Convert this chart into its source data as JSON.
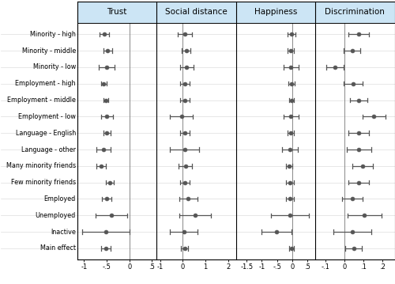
{
  "row_labels": [
    "Minority - high",
    "Minority - middle",
    "Minority - low",
    "Employment - high",
    "Employment - middle",
    "Employment - low",
    "Language - English",
    "Language - other",
    "Many minority friends",
    "Few minority friends",
    "Employed",
    "Unemployed",
    "Inactive",
    "Main effect"
  ],
  "panels": [
    {
      "title": "Trust",
      "xlim": [
        -1.15,
        0.6
      ],
      "xticks": [
        -1,
        -0.5,
        0,
        0.5
      ],
      "xticklabels": [
        "-1",
        "-.5",
        "0",
        ".5"
      ],
      "zero_line": 0.0,
      "data": [
        {
          "est": -0.55,
          "lo": -0.65,
          "hi": -0.45
        },
        {
          "est": -0.48,
          "lo": -0.58,
          "hi": -0.38
        },
        {
          "est": -0.5,
          "lo": -0.68,
          "hi": -0.32
        },
        {
          "est": -0.57,
          "lo": -0.63,
          "hi": -0.51
        },
        {
          "est": -0.52,
          "lo": -0.58,
          "hi": -0.46
        },
        {
          "est": -0.5,
          "lo": -0.63,
          "hi": -0.37
        },
        {
          "est": -0.5,
          "lo": -0.58,
          "hi": -0.42
        },
        {
          "est": -0.57,
          "lo": -0.72,
          "hi": -0.42
        },
        {
          "est": -0.62,
          "lo": -0.72,
          "hi": -0.52
        },
        {
          "est": -0.43,
          "lo": -0.52,
          "hi": -0.34
        },
        {
          "est": -0.5,
          "lo": -0.6,
          "hi": -0.4
        },
        {
          "est": -0.4,
          "lo": -0.75,
          "hi": -0.05
        },
        {
          "est": -0.52,
          "lo": -1.05,
          "hi": 0.01
        },
        {
          "est": -0.52,
          "lo": -0.62,
          "hi": -0.42
        }
      ]
    },
    {
      "title": "Social distance",
      "xlim": [
        -1.15,
        2.35
      ],
      "xticks": [
        -1,
        0,
        1,
        2
      ],
      "xticklabels": [
        "-1",
        "0",
        "1",
        "2"
      ],
      "zero_line": 0.0,
      "data": [
        {
          "est": 0.1,
          "lo": -0.2,
          "hi": 0.4
        },
        {
          "est": 0.15,
          "lo": -0.05,
          "hi": 0.35
        },
        {
          "est": 0.18,
          "lo": -0.12,
          "hi": 0.48
        },
        {
          "est": 0.1,
          "lo": -0.12,
          "hi": 0.32
        },
        {
          "est": 0.1,
          "lo": -0.1,
          "hi": 0.3
        },
        {
          "est": -0.05,
          "lo": -0.55,
          "hi": 0.45
        },
        {
          "est": 0.1,
          "lo": -0.12,
          "hi": 0.32
        },
        {
          "est": 0.08,
          "lo": -0.55,
          "hi": 0.71
        },
        {
          "est": 0.12,
          "lo": -0.18,
          "hi": 0.42
        },
        {
          "est": 0.1,
          "lo": -0.12,
          "hi": 0.32
        },
        {
          "est": 0.25,
          "lo": -0.15,
          "hi": 0.65
        },
        {
          "est": 0.55,
          "lo": -0.15,
          "hi": 1.25
        },
        {
          "est": 0.05,
          "lo": -0.55,
          "hi": 0.65
        },
        {
          "est": 0.08,
          "lo": -0.08,
          "hi": 0.24
        }
      ]
    },
    {
      "title": "Happiness",
      "xlim": [
        -1.85,
        0.75
      ],
      "xticks": [
        -1.5,
        -1,
        -0.5,
        0,
        0.5
      ],
      "xticklabels": [
        "-1.5",
        "-1",
        "-.5",
        "0",
        ".5"
      ],
      "zero_line": 0.0,
      "data": [
        {
          "est": -0.02,
          "lo": -0.15,
          "hi": 0.11
        },
        {
          "est": -0.05,
          "lo": -0.15,
          "hi": 0.05
        },
        {
          "est": -0.05,
          "lo": -0.3,
          "hi": 0.2
        },
        {
          "est": -0.02,
          "lo": -0.12,
          "hi": 0.08
        },
        {
          "est": -0.02,
          "lo": -0.1,
          "hi": 0.06
        },
        {
          "est": -0.05,
          "lo": -0.3,
          "hi": 0.2
        },
        {
          "est": -0.05,
          "lo": -0.15,
          "hi": 0.05
        },
        {
          "est": -0.08,
          "lo": -0.33,
          "hi": 0.17
        },
        {
          "est": -0.1,
          "lo": -0.2,
          "hi": 0.0
        },
        {
          "est": -0.08,
          "lo": -0.2,
          "hi": 0.04
        },
        {
          "est": -0.08,
          "lo": -0.22,
          "hi": 0.06
        },
        {
          "est": -0.08,
          "lo": -0.7,
          "hi": 0.54
        },
        {
          "est": -0.52,
          "lo": -1.0,
          "hi": -0.04
        },
        {
          "est": -0.03,
          "lo": -0.1,
          "hi": 0.04
        }
      ]
    },
    {
      "title": "Discrimination",
      "xlim": [
        -0.155,
        0.265
      ],
      "xticks": [
        -0.1,
        0,
        0.1,
        0.2
      ],
      "xticklabels": [
        "-.1",
        "0",
        ".1",
        ".2"
      ],
      "zero_line": 0.0,
      "data": [
        {
          "est": 0.075,
          "lo": 0.02,
          "hi": 0.13
        },
        {
          "est": 0.04,
          "lo": -0.005,
          "hi": 0.085
        },
        {
          "est": -0.05,
          "lo": -0.095,
          "hi": -0.005
        },
        {
          "est": 0.045,
          "lo": -0.005,
          "hi": 0.095
        },
        {
          "est": 0.075,
          "lo": 0.03,
          "hi": 0.12
        },
        {
          "est": 0.155,
          "lo": 0.095,
          "hi": 0.215
        },
        {
          "est": 0.075,
          "lo": 0.02,
          "hi": 0.13
        },
        {
          "est": 0.075,
          "lo": 0.01,
          "hi": 0.14
        },
        {
          "est": 0.095,
          "lo": 0.04,
          "hi": 0.15
        },
        {
          "est": 0.075,
          "lo": 0.02,
          "hi": 0.13
        },
        {
          "est": 0.04,
          "lo": -0.015,
          "hi": 0.095
        },
        {
          "est": 0.105,
          "lo": 0.015,
          "hi": 0.195
        },
        {
          "est": 0.04,
          "lo": -0.06,
          "hi": 0.14
        },
        {
          "est": 0.048,
          "lo": 0.005,
          "hi": 0.091
        }
      ]
    }
  ],
  "marker_color": "#555555",
  "line_color": "#555555",
  "header_bg_color": "#cce5f5",
  "grid_color": "#dddddd",
  "marker_size": 3.5,
  "line_width": 0.9,
  "figsize": [
    5.0,
    3.59
  ],
  "dpi": 100
}
